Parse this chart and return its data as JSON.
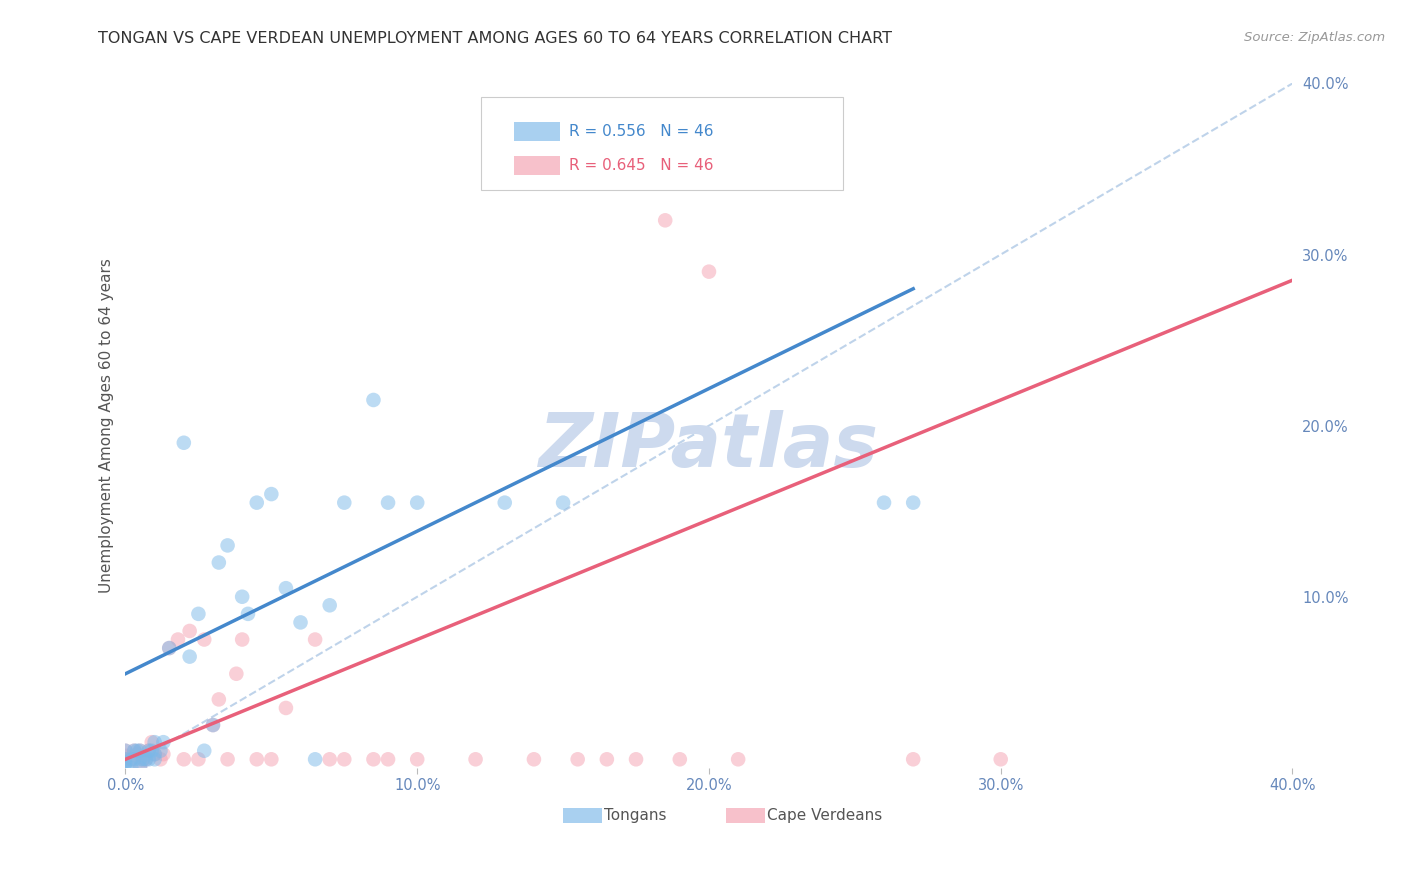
{
  "title": "TONGAN VS CAPE VERDEAN UNEMPLOYMENT AMONG AGES 60 TO 64 YEARS CORRELATION CHART",
  "source": "Source: ZipAtlas.com",
  "ylabel": "Unemployment Among Ages 60 to 64 years",
  "xlim": [
    0.0,
    0.4
  ],
  "ylim": [
    0.0,
    0.4
  ],
  "x_ticks": [
    0.0,
    0.1,
    0.2,
    0.3,
    0.4
  ],
  "x_tick_labels": [
    "0.0%",
    "10.0%",
    "20.0%",
    "30.0%",
    "40.0%"
  ],
  "y_ticks_right": [
    0.1,
    0.2,
    0.3,
    0.4
  ],
  "y_tick_labels_right": [
    "10.0%",
    "20.0%",
    "30.0%",
    "40.0%"
  ],
  "tongan_color": "#7bb8e8",
  "cape_color": "#f4a0b0",
  "tongan_line_color": "#4488cc",
  "cape_line_color": "#e8607a",
  "ref_line_color": "#b8cfe8",
  "title_color": "#333333",
  "axis_label_color": "#555555",
  "tick_color": "#6688bb",
  "grid_color": "#cccccc",
  "watermark_color": "#cddaee",
  "background_color": "#ffffff",
  "legend_tongan_r": "R = 0.556",
  "legend_tongan_n": "N = 46",
  "legend_cape_r": "R = 0.645",
  "legend_cape_n": "N = 46",
  "tongan_scatter_x": [
    0.0,
    0.0,
    0.0,
    0.0,
    0.002,
    0.002,
    0.003,
    0.003,
    0.004,
    0.005,
    0.005,
    0.005,
    0.006,
    0.007,
    0.008,
    0.008,
    0.009,
    0.01,
    0.01,
    0.01,
    0.012,
    0.013,
    0.015,
    0.02,
    0.022,
    0.025,
    0.027,
    0.03,
    0.032,
    0.035,
    0.04,
    0.042,
    0.045,
    0.05,
    0.055,
    0.06,
    0.065,
    0.07,
    0.075,
    0.085,
    0.09,
    0.1,
    0.13,
    0.15,
    0.26,
    0.27
  ],
  "tongan_scatter_y": [
    0.0,
    0.003,
    0.005,
    0.01,
    0.0,
    0.005,
    0.005,
    0.01,
    0.01,
    0.0,
    0.005,
    0.01,
    0.005,
    0.005,
    0.005,
    0.01,
    0.01,
    0.005,
    0.008,
    0.015,
    0.01,
    0.015,
    0.07,
    0.19,
    0.065,
    0.09,
    0.01,
    0.025,
    0.12,
    0.13,
    0.1,
    0.09,
    0.155,
    0.16,
    0.105,
    0.085,
    0.005,
    0.095,
    0.155,
    0.215,
    0.155,
    0.155,
    0.155,
    0.155,
    0.155,
    0.155
  ],
  "cape_scatter_x": [
    0.0,
    0.0,
    0.0,
    0.002,
    0.003,
    0.004,
    0.005,
    0.005,
    0.006,
    0.007,
    0.008,
    0.009,
    0.01,
    0.012,
    0.013,
    0.015,
    0.018,
    0.02,
    0.022,
    0.025,
    0.027,
    0.03,
    0.032,
    0.035,
    0.038,
    0.04,
    0.045,
    0.05,
    0.055,
    0.065,
    0.07,
    0.075,
    0.085,
    0.09,
    0.1,
    0.12,
    0.14,
    0.155,
    0.165,
    0.175,
    0.185,
    0.19,
    0.2,
    0.21,
    0.27,
    0.3
  ],
  "cape_scatter_y": [
    0.005,
    0.007,
    0.01,
    0.005,
    0.01,
    0.008,
    0.0,
    0.01,
    0.005,
    0.005,
    0.01,
    0.015,
    0.008,
    0.005,
    0.008,
    0.07,
    0.075,
    0.005,
    0.08,
    0.005,
    0.075,
    0.025,
    0.04,
    0.005,
    0.055,
    0.075,
    0.005,
    0.005,
    0.035,
    0.075,
    0.005,
    0.005,
    0.005,
    0.005,
    0.005,
    0.005,
    0.005,
    0.005,
    0.005,
    0.005,
    0.32,
    0.005,
    0.29,
    0.005,
    0.005,
    0.005
  ],
  "tongan_line_x": [
    0.0,
    0.27
  ],
  "tongan_line_y": [
    0.055,
    0.28
  ],
  "cape_line_x": [
    0.0,
    0.4
  ],
  "cape_line_y": [
    0.005,
    0.285
  ],
  "ref_line_x": [
    0.0,
    0.4
  ],
  "ref_line_y": [
    0.0,
    0.4
  ]
}
